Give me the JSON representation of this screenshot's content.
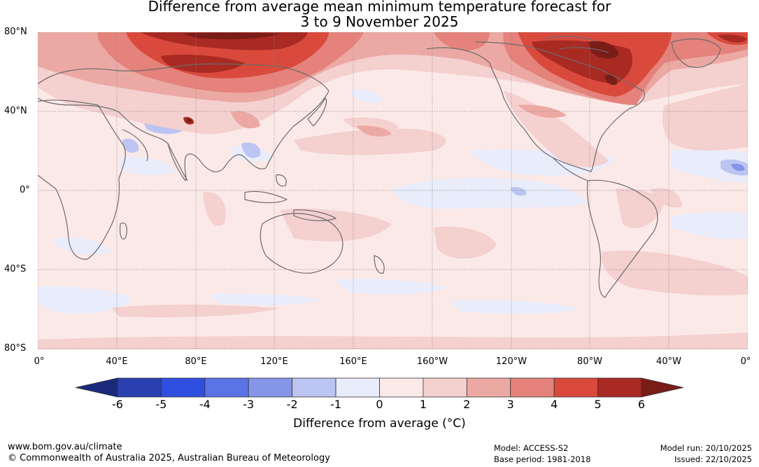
{
  "title": {
    "line1": "Difference from average mean minimum temperature forecast for",
    "line2": "3 to 9 November 2025"
  },
  "map": {
    "lat_labels": [
      "80°N",
      "40°N",
      "0°",
      "40°S",
      "80°S"
    ],
    "lon_labels": [
      "0°",
      "40°E",
      "80°E",
      "120°E",
      "160°E",
      "160°W",
      "120°W",
      "80°W",
      "40°W",
      "0°"
    ]
  },
  "colorbar": {
    "ticks": [
      "-6",
      "-5",
      "-4",
      "-3",
      "-2",
      "-1",
      "0",
      "1",
      "2",
      "3",
      "4",
      "5",
      "6"
    ],
    "colors": [
      "#1b2a7a",
      "#2a40b0",
      "#2f4fe0",
      "#5a73e6",
      "#8595e8",
      "#bcc4f2",
      "#e9ecfb",
      "#fbe9e7",
      "#f4d0cf",
      "#eca9a4",
      "#e4827b",
      "#d94a3c",
      "#a92a22",
      "#7a1c18"
    ],
    "title": "Difference from average (°C)"
  },
  "footer": {
    "url": "www.bom.gov.au/climate",
    "copyright": "© Commonwealth of Australia 2025, Australian Bureau of Meteorology",
    "model": "Model: ACCESS-S2",
    "base_period": "Base period: 1981-2018",
    "model_run": "Model run: 20/10/2025",
    "issued": "Issued: 22/10/2025"
  }
}
